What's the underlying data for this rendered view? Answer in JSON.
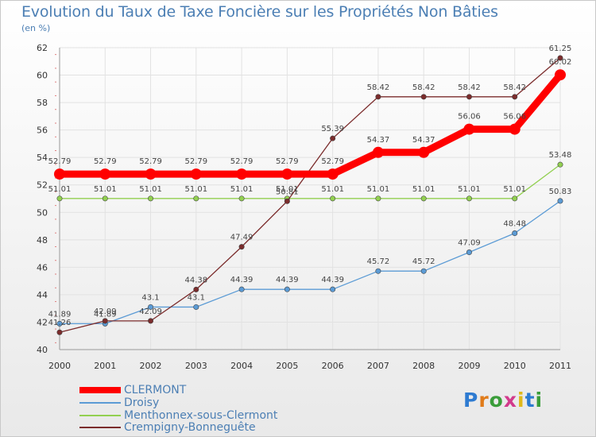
{
  "chart_data": {
    "type": "line",
    "title": "Evolution du Taux de Taxe Foncière sur les Propriétés Non Bâties",
    "ylabel": "(en %)",
    "xlabel": "",
    "ylim": [
      40,
      62
    ],
    "yticks": [
      40,
      42,
      44,
      46,
      48,
      50,
      52,
      54,
      56,
      58,
      60,
      62
    ],
    "categories": [
      "2000",
      "2001",
      "2002",
      "2003",
      "2004",
      "2005",
      "2006",
      "2007",
      "2008",
      "2009",
      "2010",
      "2011"
    ],
    "series": [
      {
        "name": "CLERMONT",
        "color": "#ff0000",
        "values": [
          52.79,
          52.79,
          52.79,
          52.79,
          52.79,
          52.79,
          52.79,
          54.37,
          54.37,
          56.06,
          56.06,
          60.02
        ],
        "labels": [
          "52.79",
          "52.79",
          "52.79",
          "52.79",
          "52.79",
          "52.79",
          "52.79",
          "54.37",
          "54.37",
          "56.06",
          "56.06",
          "60.02"
        ]
      },
      {
        "name": "Droisy",
        "color": "#5b9bd5",
        "values": [
          41.89,
          41.89,
          43.1,
          43.1,
          44.39,
          44.39,
          44.39,
          45.72,
          45.72,
          47.09,
          48.48,
          50.83
        ],
        "labels": [
          "41.89",
          "41.89",
          "43.1",
          "43.1",
          "44.39",
          "44.39",
          "44.39",
          "45.72",
          "45.72",
          "47.09",
          "48.48",
          "50.83"
        ]
      },
      {
        "name": "Menthonnex-sous-Clermont",
        "color": "#92d050",
        "values": [
          51.01,
          51.01,
          51.01,
          51.01,
          51.01,
          51.01,
          51.01,
          51.01,
          51.01,
          51.01,
          51.01,
          53.48
        ],
        "labels": [
          "51.01",
          "51.01",
          "51.01",
          "51.01",
          "51.01",
          "51.01",
          "51.01",
          "51.01",
          "51.01",
          "51.01",
          "51.01",
          "53.48"
        ]
      },
      {
        "name": "Crempigny-Bonneguête",
        "color": "#7b2c2c",
        "values": [
          41.26,
          42.09,
          42.09,
          44.38,
          47.49,
          50.81,
          55.39,
          58.42,
          58.42,
          58.42,
          58.42,
          61.25
        ],
        "labels": [
          "41.26",
          "42.09",
          "42.09",
          "44.38",
          "47.49",
          "50.81",
          "55.39",
          "58.42",
          "58.42",
          "58.42",
          "58.42",
          "61.25"
        ]
      }
    ]
  },
  "brand": {
    "letters": [
      "P",
      "r",
      "o",
      "x",
      "i",
      "t",
      "i"
    ],
    "colors": [
      "#2e7bd1",
      "#e07b1a",
      "#3a9d3a",
      "#d23a8c",
      "#e0b81a",
      "#2e7bd1",
      "#3a9d3a"
    ]
  }
}
